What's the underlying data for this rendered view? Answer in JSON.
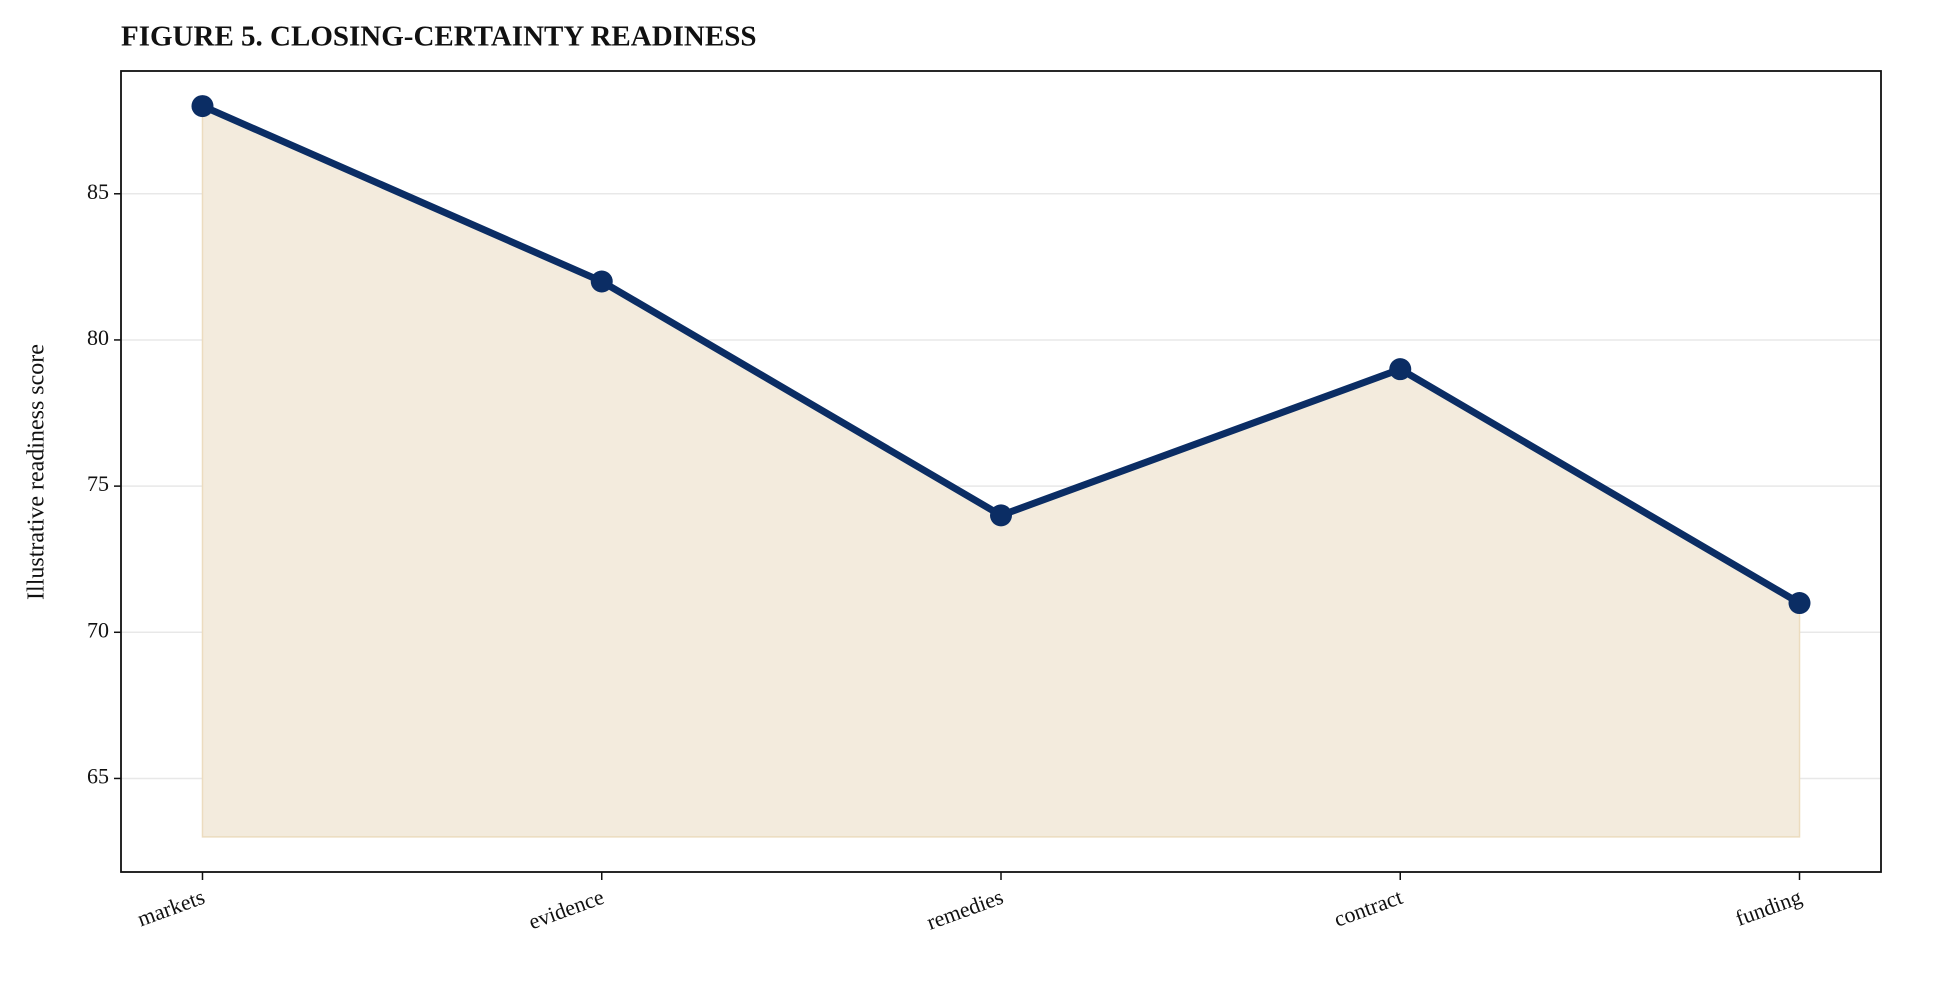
{
  "chart_data": {
    "type": "area-line",
    "title": "FIGURE 5. CLOSING-CERTAINTY READINESS",
    "y_label": "Illustrative readiness score",
    "categories": [
      "markets",
      "evidence",
      "remedies",
      "contract",
      "funding"
    ],
    "series": [
      {
        "color": "#0b2d64",
        "values": [
          88,
          82,
          74,
          79,
          71
        ]
      }
    ],
    "fill_color": "#f3ebdd",
    "fill_to": 63,
    "ylim": [
      61.8,
      89.2
    ],
    "yticks": [
      65,
      70,
      75,
      80,
      85
    ],
    "grid": true
  }
}
